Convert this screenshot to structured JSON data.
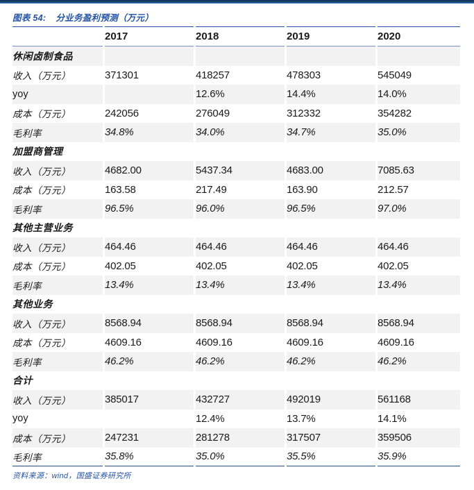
{
  "meta": {
    "title_label": "图表 54:",
    "title_text": "分业务盈利预测（万元）",
    "source_text": "资料来源：wind，国盛证券研究所"
  },
  "colors": {
    "accent_blue": "#2553A3",
    "top_bar_dark": "#17375E",
    "top_bar_light": "#2E6DB5",
    "header_underline_blue": "#7792C4",
    "footer_line_navy": "#24477E",
    "row_stripe_gray": "#F2F2F2",
    "text_color": "#1a1a1a"
  },
  "table": {
    "years": [
      "2017",
      "2018",
      "2019",
      "2020"
    ],
    "rows": [
      {
        "type": "section",
        "label": "休闲卤制食品",
        "values": [
          "",
          "",
          "",
          ""
        ]
      },
      {
        "type": "data",
        "label": "收入（万元）",
        "values": [
          "371301",
          "418257",
          "478303",
          "545049"
        ]
      },
      {
        "type": "yoy",
        "label": "yoy",
        "values": [
          "",
          "12.6%",
          "14.4%",
          "14.0%"
        ]
      },
      {
        "type": "data",
        "label": "成本（万元）",
        "values": [
          "242056",
          "276049",
          "312332",
          "354282"
        ]
      },
      {
        "type": "pct",
        "label": "毛利率",
        "values": [
          "34.8%",
          "34.0%",
          "34.7%",
          "35.0%"
        ]
      },
      {
        "type": "section",
        "label": "加盟商管理",
        "values": [
          "",
          "",
          "",
          ""
        ]
      },
      {
        "type": "data",
        "label": "收入（万元）",
        "values": [
          "4682.00",
          "5437.34",
          "4683.00",
          "7085.63"
        ]
      },
      {
        "type": "data",
        "label": "成本（万元）",
        "values": [
          "163.58",
          "217.49",
          "163.90",
          "212.57"
        ]
      },
      {
        "type": "pct",
        "label": "毛利率",
        "values": [
          "96.5%",
          "96.0%",
          "96.5%",
          "97.0%"
        ]
      },
      {
        "type": "section",
        "label": "其他主营业务",
        "values": [
          "",
          "",
          "",
          ""
        ]
      },
      {
        "type": "data",
        "label": "收入（万元）",
        "values": [
          "464.46",
          "464.46",
          "464.46",
          "464.46"
        ]
      },
      {
        "type": "data",
        "label": "成本（万元）",
        "values": [
          "402.05",
          "402.05",
          "402.05",
          "402.05"
        ]
      },
      {
        "type": "pct",
        "label": "毛利率",
        "values": [
          "13.4%",
          "13.4%",
          "13.4%",
          "13.4%"
        ]
      },
      {
        "type": "section",
        "label": "其他业务",
        "values": [
          "",
          "",
          "",
          ""
        ]
      },
      {
        "type": "data",
        "label": "收入（万元）",
        "values": [
          "8568.94",
          "8568.94",
          "8568.94",
          "8568.94"
        ]
      },
      {
        "type": "data",
        "label": "成本（万元）",
        "values": [
          "4609.16",
          "4609.16",
          "4609.16",
          "4609.16"
        ]
      },
      {
        "type": "pct",
        "label": "毛利率",
        "values": [
          "46.2%",
          "46.2%",
          "46.2%",
          "46.2%"
        ]
      },
      {
        "type": "section",
        "label": "合计",
        "values": [
          "",
          "",
          "",
          ""
        ]
      },
      {
        "type": "data",
        "label": "收入（万元）",
        "values": [
          "385017",
          "432727",
          "492019",
          "561168"
        ]
      },
      {
        "type": "yoy",
        "label": "yoy",
        "values": [
          "",
          "12.4%",
          "13.7%",
          "14.1%"
        ]
      },
      {
        "type": "data",
        "label": "成本（万元）",
        "values": [
          "247231",
          "281278",
          "317507",
          "359506"
        ]
      },
      {
        "type": "pct",
        "label": "毛利率",
        "values": [
          "35.8%",
          "35.0%",
          "35.5%",
          "35.9%"
        ]
      }
    ]
  }
}
